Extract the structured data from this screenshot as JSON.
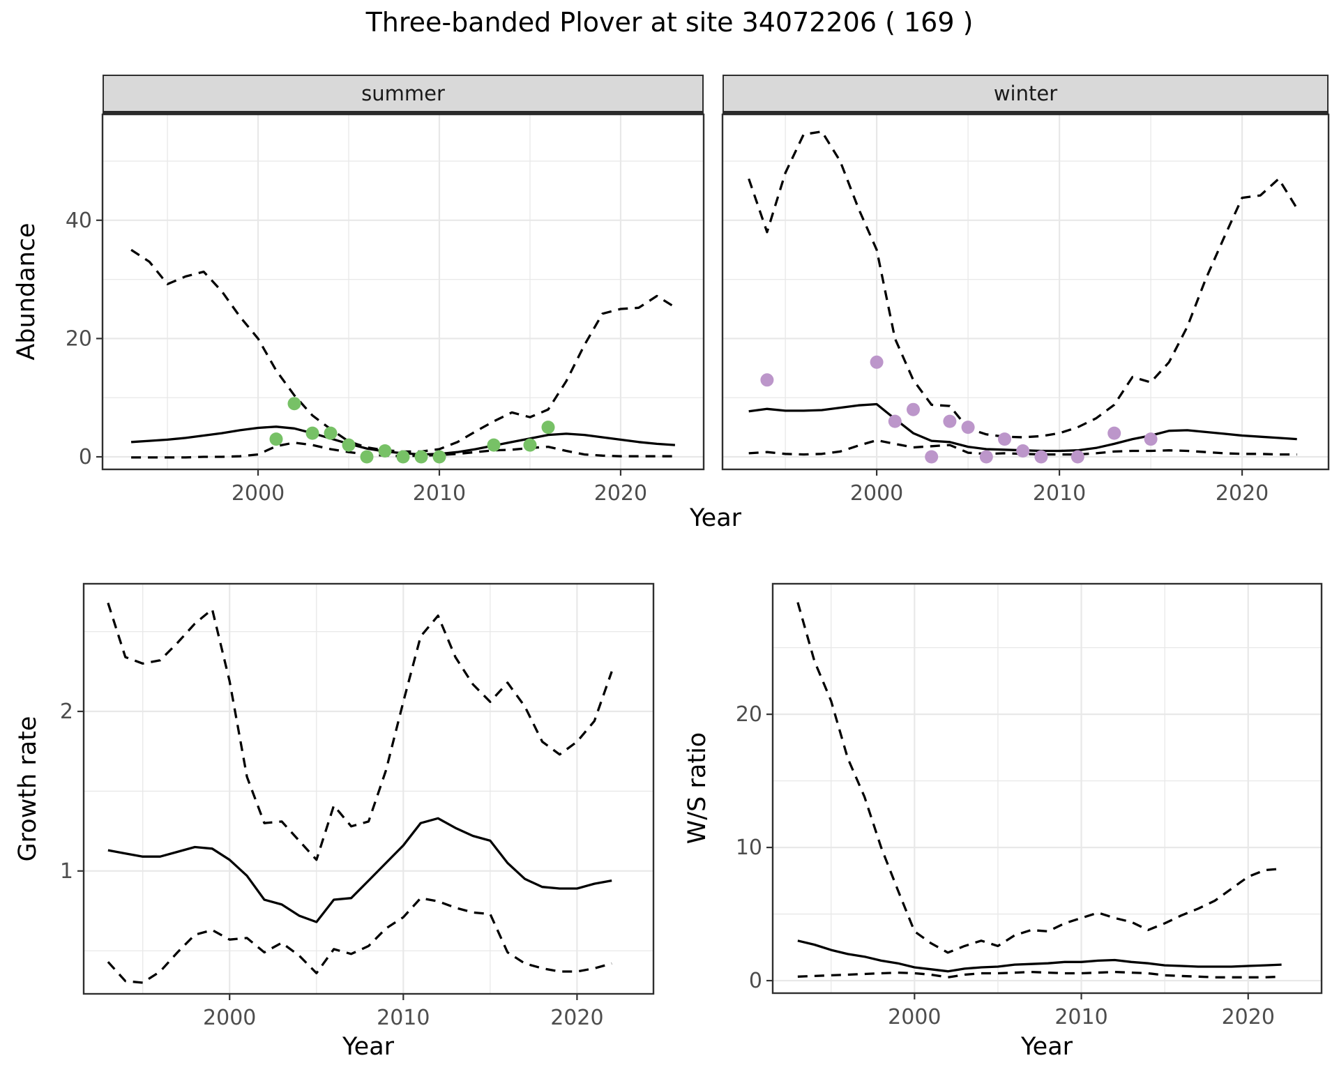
{
  "title": "Three-banded Plover at site 34072206 ( 169 )",
  "facets": {
    "summer": "summer",
    "winter": "winter"
  },
  "axis_titles": {
    "abundance": "Abundance",
    "year": "Year",
    "growth": "Growth rate",
    "ws": "W/S ratio"
  },
  "colors": {
    "summer_points": "#77C166",
    "winter_points": "#BC96CA",
    "line": "#000000",
    "grid": "#e8e8e8",
    "strip_fill": "#d9d9d9",
    "axis_text": "#4d4d4d",
    "tick": "#333333",
    "border": "#2f2f2f"
  },
  "chart_data": [
    {
      "id": "summer",
      "type": "line",
      "facet_label": "summer",
      "xlabel": "Year",
      "ylabel": "Abundance",
      "x": [
        1993,
        1994,
        1995,
        1996,
        1997,
        1998,
        1999,
        2000,
        2001,
        2002,
        2003,
        2004,
        2005,
        2006,
        2007,
        2008,
        2009,
        2010,
        2011,
        2012,
        2013,
        2014,
        2015,
        2016,
        2017,
        2018,
        2019,
        2020,
        2021,
        2022,
        2023
      ],
      "series": [
        {
          "name": "median",
          "style": "solid",
          "values": [
            2.5,
            2.7,
            2.9,
            3.2,
            3.6,
            4.0,
            4.5,
            4.9,
            5.1,
            4.8,
            4.0,
            3.1,
            2.2,
            1.4,
            0.9,
            0.6,
            0.4,
            0.5,
            0.8,
            1.3,
            1.9,
            2.5,
            3.1,
            3.7,
            3.9,
            3.7,
            3.3,
            2.9,
            2.5,
            2.2,
            2.0
          ]
        },
        {
          "name": "upper_ci",
          "style": "dashed",
          "values": [
            35,
            33,
            29.2,
            30.5,
            31.3,
            28,
            23.7,
            20,
            14.6,
            10.4,
            7,
            4.7,
            2.6,
            1.6,
            1.1,
            0.9,
            0.9,
            1.3,
            2.5,
            4.3,
            6.0,
            7.5,
            6.7,
            8.0,
            12.8,
            18.9,
            24.2,
            25.0,
            25.2,
            27.2,
            25.3
          ]
        },
        {
          "name": "lower_ci",
          "style": "dashed",
          "values": [
            -0.1,
            -0.1,
            -0.1,
            -0.1,
            0,
            0,
            0.1,
            0.4,
            1.8,
            2.4,
            2.0,
            1.3,
            0.8,
            0.4,
            0.2,
            0.1,
            0.2,
            0.3,
            0.5,
            0.8,
            1.1,
            1.2,
            1.5,
            1.7,
            1.0,
            0.4,
            0.2,
            0.1,
            0.1,
            0.1,
            0.1
          ]
        }
      ],
      "points": {
        "name": "observed-counts",
        "color_key": "summer_points",
        "x": [
          2001,
          2002,
          2003,
          2004,
          2005,
          2006,
          2007,
          2008,
          2009,
          2010,
          2013,
          2015,
          2016
        ],
        "y": [
          3,
          9,
          4,
          4,
          2,
          0,
          1,
          0,
          0,
          0,
          2,
          2,
          5
        ]
      },
      "xlim": [
        1991.42,
        2024.58
      ],
      "ylim": [
        -2.12,
        57.9
      ],
      "xticks": {
        "major": [
          2000,
          2010,
          2020
        ],
        "minor": [
          1995,
          2005,
          2015
        ],
        "labels": [
          "2000",
          "2010",
          "2020"
        ]
      },
      "yticks": {
        "major": [
          0,
          20,
          40
        ],
        "minor": [
          10,
          30,
          50
        ],
        "labels": [
          "0",
          "20",
          "40"
        ],
        "show_labels": true
      },
      "grid": true,
      "legend": "none"
    },
    {
      "id": "winter",
      "type": "line",
      "facet_label": "winter",
      "xlabel": "Year",
      "ylabel": "Abundance",
      "x": [
        1993,
        1994,
        1995,
        1996,
        1997,
        1998,
        1999,
        2000,
        2001,
        2002,
        2003,
        2004,
        2005,
        2006,
        2007,
        2008,
        2009,
        2010,
        2011,
        2012,
        2013,
        2014,
        2015,
        2016,
        2017,
        2018,
        2019,
        2020,
        2021,
        2022,
        2023
      ],
      "series": [
        {
          "name": "median",
          "style": "solid",
          "values": [
            7.7,
            8.1,
            7.8,
            7.8,
            7.9,
            8.3,
            8.7,
            8.9,
            6.4,
            4.0,
            2.7,
            2.5,
            1.7,
            1.3,
            1.2,
            1.1,
            1.0,
            1.0,
            1.1,
            1.5,
            2.2,
            3.0,
            3.6,
            4.4,
            4.5,
            4.2,
            3.9,
            3.6,
            3.4,
            3.2,
            3.0
          ]
        },
        {
          "name": "upper_ci",
          "style": "dashed",
          "values": [
            47,
            38,
            48,
            54.5,
            55,
            50,
            42,
            35,
            20,
            13,
            8.8,
            8.6,
            4.8,
            3.8,
            3.4,
            3.3,
            3.5,
            4.0,
            5.0,
            6.5,
            8.8,
            13.5,
            12.6,
            16,
            22,
            30,
            37,
            43.8,
            44.2,
            47,
            42
          ]
        },
        {
          "name": "lower_ci",
          "style": "dashed",
          "values": [
            0.6,
            0.8,
            0.5,
            0.4,
            0.5,
            0.9,
            1.9,
            2.8,
            2.2,
            1.6,
            1.8,
            2.0,
            0.7,
            0.5,
            0.6,
            0.5,
            0.4,
            0.4,
            0.4,
            0.6,
            0.9,
            1.0,
            1.0,
            1.1,
            1.0,
            0.8,
            0.6,
            0.5,
            0.5,
            0.4,
            0.4
          ]
        }
      ],
      "points": {
        "name": "observed-counts",
        "color_key": "winter_points",
        "x": [
          1994,
          2000,
          2001,
          2002,
          2003,
          2004,
          2005,
          2006,
          2007,
          2008,
          2009,
          2011,
          2013,
          2015
        ],
        "y": [
          13,
          16,
          6,
          8,
          0,
          6,
          5,
          0,
          3,
          1,
          0,
          0,
          4,
          3
        ]
      },
      "xlim": [
        1991.56,
        2024.73
      ],
      "ylim": [
        -2.12,
        57.9
      ],
      "xticks": {
        "major": [
          2000,
          2010,
          2020
        ],
        "minor": [
          1995,
          2005,
          2015
        ],
        "labels": [
          "2000",
          "2010",
          "2020"
        ]
      },
      "yticks": {
        "major": [
          0,
          20,
          40
        ],
        "minor": [
          10,
          30,
          50
        ],
        "labels": [
          "0",
          "20",
          "40"
        ],
        "show_labels": false
      },
      "grid": true,
      "legend": "none"
    },
    {
      "id": "growth",
      "type": "line",
      "facet_label": "",
      "xlabel": "Year",
      "ylabel": "Growth rate",
      "x": [
        1993,
        1994,
        1995,
        1996,
        1997,
        1998,
        1999,
        2000,
        2001,
        2002,
        2003,
        2004,
        2005,
        2006,
        2007,
        2008,
        2009,
        2010,
        2011,
        2012,
        2013,
        2014,
        2015,
        2016,
        2017,
        2018,
        2019,
        2020,
        2021,
        2022
      ],
      "series": [
        {
          "name": "median",
          "style": "solid",
          "values": [
            1.13,
            1.11,
            1.09,
            1.09,
            1.12,
            1.15,
            1.14,
            1.07,
            0.97,
            0.82,
            0.79,
            0.72,
            0.68,
            0.82,
            0.83,
            0.94,
            1.05,
            1.16,
            1.3,
            1.33,
            1.27,
            1.22,
            1.19,
            1.05,
            0.95,
            0.9,
            0.89,
            0.89,
            0.92,
            0.94
          ]
        },
        {
          "name": "upper_ci",
          "style": "dashed",
          "values": [
            2.68,
            2.34,
            2.3,
            2.32,
            2.43,
            2.55,
            2.64,
            2.19,
            1.59,
            1.3,
            1.31,
            1.19,
            1.07,
            1.41,
            1.28,
            1.31,
            1.63,
            2.06,
            2.47,
            2.6,
            2.34,
            2.17,
            2.06,
            2.18,
            2.03,
            1.81,
            1.73,
            1.81,
            1.94,
            2.25
          ]
        },
        {
          "name": "lower_ci",
          "style": "dashed",
          "values": [
            0.43,
            0.31,
            0.3,
            0.37,
            0.49,
            0.6,
            0.63,
            0.57,
            0.58,
            0.49,
            0.55,
            0.47,
            0.36,
            0.51,
            0.48,
            0.53,
            0.64,
            0.71,
            0.83,
            0.81,
            0.77,
            0.74,
            0.73,
            0.49,
            0.42,
            0.39,
            0.37,
            0.37,
            0.39,
            0.42
          ]
        }
      ],
      "points": null,
      "xlim": [
        1991.6,
        2024.4
      ],
      "ylim": [
        0.23,
        2.8
      ],
      "xticks": {
        "major": [
          2000,
          2010,
          2020
        ],
        "minor": [
          1995,
          2005,
          2015
        ],
        "labels": [
          "2000",
          "2010",
          "2020"
        ]
      },
      "yticks": {
        "major": [
          1,
          2
        ],
        "minor": [
          0.5,
          1.5,
          2.5
        ],
        "labels": [
          "1",
          "2"
        ],
        "show_labels": true
      },
      "grid": true,
      "legend": "none"
    },
    {
      "id": "ws",
      "type": "line",
      "facet_label": "",
      "xlabel": "Year",
      "ylabel": "W/S ratio",
      "x": [
        1993,
        1994,
        1995,
        1996,
        1997,
        1998,
        1999,
        2000,
        2001,
        2002,
        2003,
        2004,
        2005,
        2006,
        2007,
        2008,
        2009,
        2010,
        2011,
        2012,
        2013,
        2014,
        2015,
        2016,
        2017,
        2018,
        2019,
        2020,
        2021,
        2022
      ],
      "series": [
        {
          "name": "median",
          "style": "solid",
          "values": [
            3.0,
            2.7,
            2.3,
            2.0,
            1.8,
            1.5,
            1.3,
            1.0,
            0.85,
            0.7,
            0.9,
            1.0,
            1.05,
            1.2,
            1.25,
            1.3,
            1.4,
            1.4,
            1.5,
            1.55,
            1.4,
            1.3,
            1.15,
            1.1,
            1.05,
            1.05,
            1.05,
            1.1,
            1.15,
            1.2
          ]
        },
        {
          "name": "upper_ci",
          "style": "dashed",
          "values": [
            28.4,
            24,
            21,
            16.7,
            13.8,
            10.0,
            6.8,
            3.7,
            2.8,
            2.1,
            2.6,
            3.0,
            2.6,
            3.4,
            3.8,
            3.7,
            4.3,
            4.7,
            5.1,
            4.7,
            4.4,
            3.8,
            4.3,
            4.9,
            5.4,
            6.0,
            6.9,
            7.8,
            8.3,
            8.4
          ]
        },
        {
          "name": "lower_ci",
          "style": "dashed",
          "values": [
            0.3,
            0.35,
            0.4,
            0.45,
            0.5,
            0.55,
            0.6,
            0.55,
            0.45,
            0.25,
            0.45,
            0.55,
            0.55,
            0.6,
            0.65,
            0.6,
            0.55,
            0.55,
            0.6,
            0.65,
            0.6,
            0.55,
            0.4,
            0.35,
            0.3,
            0.25,
            0.25,
            0.25,
            0.25,
            0.3
          ]
        }
      ],
      "points": null,
      "xlim": [
        1991.5,
        2024.4
      ],
      "ylim": [
        -0.94,
        29.8
      ],
      "xticks": {
        "major": [
          2000,
          2010,
          2020
        ],
        "minor": [
          1995,
          2005,
          2015
        ],
        "labels": [
          "2000",
          "2010",
          "2020"
        ]
      },
      "yticks": {
        "major": [
          0,
          10,
          20
        ],
        "minor": [
          5,
          15,
          25
        ],
        "labels": [
          "0",
          "10",
          "20"
        ],
        "show_labels": true
      },
      "grid": true,
      "legend": "none"
    }
  ]
}
